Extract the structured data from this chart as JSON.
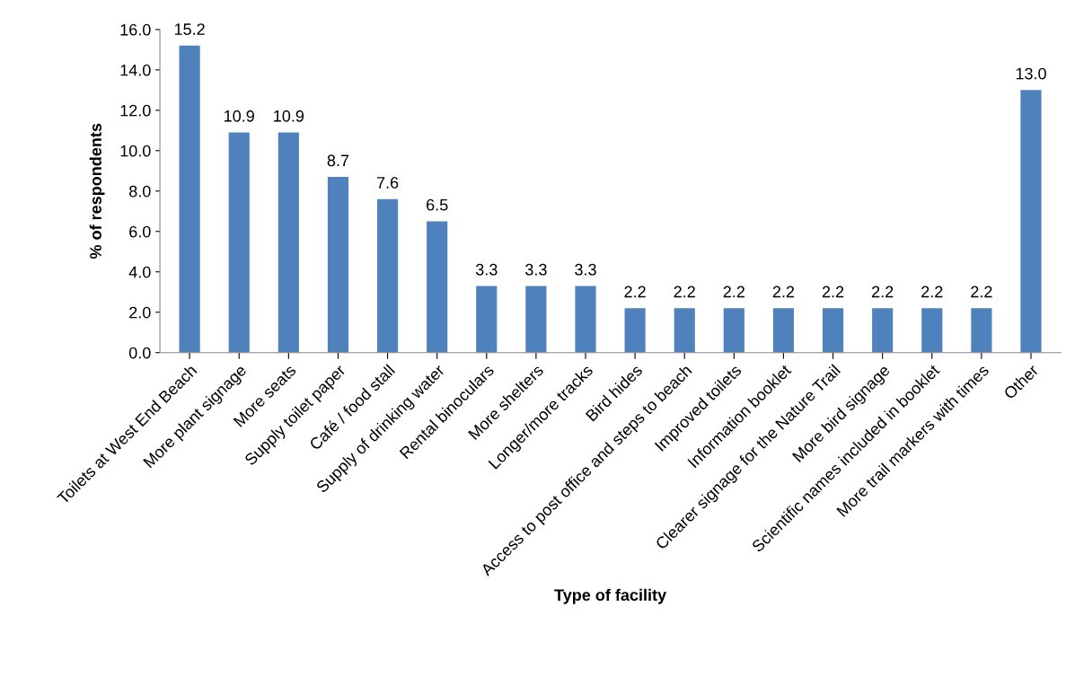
{
  "chart_data": {
    "type": "bar",
    "xlabel": "Type of facility",
    "ylabel": "% of respondents",
    "categories": [
      "Toilets at West End Beach",
      "More plant signage",
      "More seats",
      "Supply toilet paper",
      "Café / food stall",
      "Supply of drinking water",
      "Rental binoculars",
      "More shelters",
      "Longer/more tracks",
      "Bird hides",
      "Access to post office and steps to beach",
      "Improved toilets",
      "Information booklet",
      "Clearer signage for the Nature Trail",
      "More bird signage",
      "Scientific names included in booklet",
      "More trail markers with times",
      "Other"
    ],
    "values": [
      15.2,
      10.9,
      10.9,
      8.7,
      7.6,
      6.5,
      3.3,
      3.3,
      3.3,
      2.2,
      2.2,
      2.2,
      2.2,
      2.2,
      2.2,
      2.2,
      2.2,
      13.0
    ],
    "value_labels": [
      "15.2",
      "10.9",
      "10.9",
      "8.7",
      "7.6",
      "6.5",
      "3.3",
      "3.3",
      "3.3",
      "2.2",
      "2.2",
      "2.2",
      "2.2",
      "2.2",
      "2.2",
      "2.2",
      "2.2",
      "13.0"
    ],
    "color": "#4f81bd",
    "ylim": [
      0,
      16
    ],
    "yticks": [
      {
        "value": 0,
        "label": "0.0"
      },
      {
        "value": 2,
        "label": "2.0"
      },
      {
        "value": 4,
        "label": "4.0"
      },
      {
        "value": 6,
        "label": "6.0"
      },
      {
        "value": 8,
        "label": "8.0"
      },
      {
        "value": 10,
        "label": "10.0"
      },
      {
        "value": 12,
        "label": "12.0"
      },
      {
        "value": 14,
        "label": "14.0"
      },
      {
        "value": 16,
        "label": "16.0"
      }
    ]
  }
}
